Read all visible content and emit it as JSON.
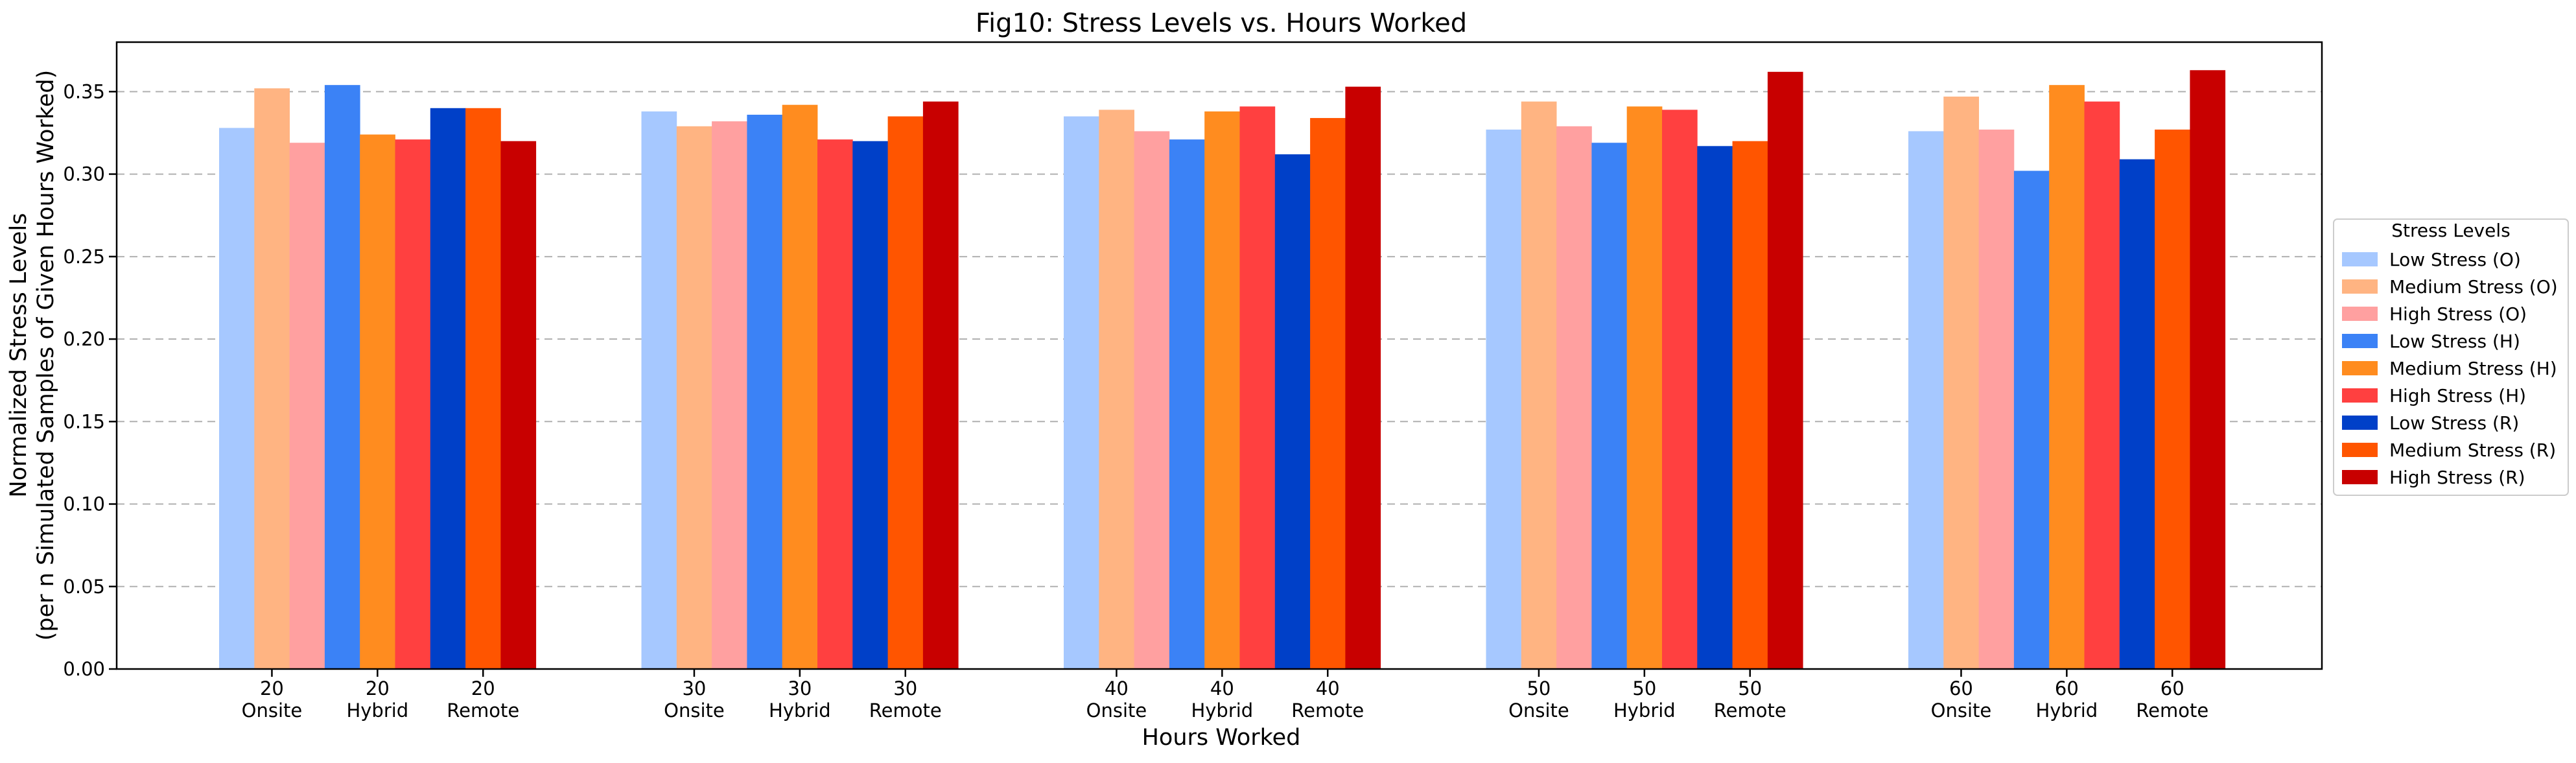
{
  "chart_data": {
    "type": "bar",
    "title": "Fig10: Stress Levels vs. Hours Worked",
    "xlabel": "Hours Worked",
    "ylabel_lines": [
      "Normalized Stress Levels",
      "(per n Simulated Samples of Given Hours Worked)"
    ],
    "ylim": [
      0,
      0.38
    ],
    "yticks": [
      "0.00",
      "0.05",
      "0.10",
      "0.15",
      "0.20",
      "0.25",
      "0.30",
      "0.35"
    ],
    "grid": "y-dashed",
    "legend_title": "Stress Levels",
    "legend_position": "center-right-outside",
    "groups": [
      {
        "hours": "20",
        "modes": [
          {
            "mode": "Onsite",
            "values": [
              0.328,
              0.352,
              0.319
            ]
          },
          {
            "mode": "Hybrid",
            "values": [
              0.354,
              0.324,
              0.321
            ]
          },
          {
            "mode": "Remote",
            "values": [
              0.34,
              0.34,
              0.32
            ]
          }
        ]
      },
      {
        "hours": "30",
        "modes": [
          {
            "mode": "Onsite",
            "values": [
              0.338,
              0.329,
              0.332
            ]
          },
          {
            "mode": "Hybrid",
            "values": [
              0.336,
              0.342,
              0.321
            ]
          },
          {
            "mode": "Remote",
            "values": [
              0.32,
              0.335,
              0.344
            ]
          }
        ]
      },
      {
        "hours": "40",
        "modes": [
          {
            "mode": "Onsite",
            "values": [
              0.335,
              0.339,
              0.326
            ]
          },
          {
            "mode": "Hybrid",
            "values": [
              0.321,
              0.338,
              0.341
            ]
          },
          {
            "mode": "Remote",
            "values": [
              0.312,
              0.334,
              0.353
            ]
          }
        ]
      },
      {
        "hours": "50",
        "modes": [
          {
            "mode": "Onsite",
            "values": [
              0.327,
              0.344,
              0.329
            ]
          },
          {
            "mode": "Hybrid",
            "values": [
              0.319,
              0.341,
              0.339
            ]
          },
          {
            "mode": "Remote",
            "values": [
              0.317,
              0.32,
              0.362
            ]
          }
        ]
      },
      {
        "hours": "60",
        "modes": [
          {
            "mode": "Onsite",
            "values": [
              0.326,
              0.347,
              0.327
            ]
          },
          {
            "mode": "Hybrid",
            "values": [
              0.302,
              0.354,
              0.344
            ]
          },
          {
            "mode": "Remote",
            "values": [
              0.309,
              0.327,
              0.363
            ]
          }
        ]
      }
    ],
    "series": [
      {
        "name": "Low Stress (O)",
        "color": "#a6c8ff"
      },
      {
        "name": "Medium Stress (O)",
        "color": "#ffb482"
      },
      {
        "name": "High Stress (O)",
        "color": "#ffa0a0"
      },
      {
        "name": "Low Stress (H)",
        "color": "#3b82f6"
      },
      {
        "name": "Medium Stress (H)",
        "color": "#ff8c1f"
      },
      {
        "name": "High Stress (H)",
        "color": "#ff4040"
      },
      {
        "name": "Low Stress (R)",
        "color": "#0040c8"
      },
      {
        "name": "Medium Stress (R)",
        "color": "#ff5500"
      },
      {
        "name": "High Stress (R)",
        "color": "#c80000"
      }
    ]
  }
}
